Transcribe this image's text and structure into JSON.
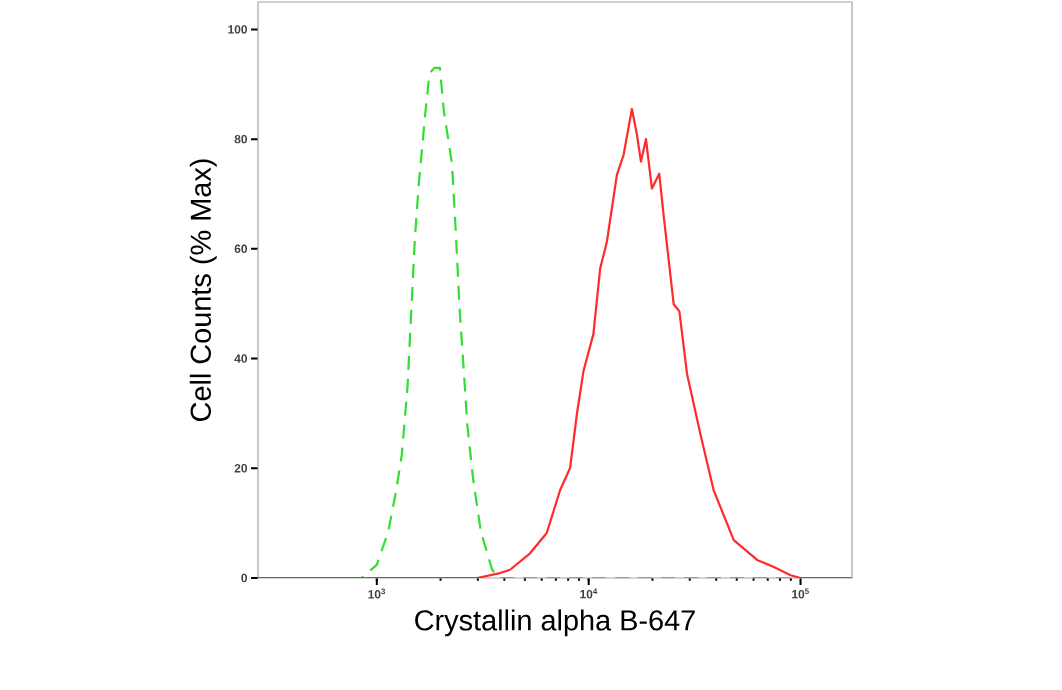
{
  "chart_data": {
    "type": "line",
    "xlabel": "Crystallin alpha B-647",
    "ylabel": "Cell Counts (% Max)",
    "log": "x",
    "xlim": [
      275,
      175000
    ],
    "ylim": [
      0,
      105
    ],
    "xticks": [
      {
        "value": 1000,
        "label": "10$^{3}$"
      },
      {
        "value": 10000,
        "label": "10$^{4}$"
      },
      {
        "value": 100000,
        "label": "10$^{5}$"
      }
    ],
    "yticks": [
      0,
      20,
      40,
      60,
      80,
      100
    ],
    "series": [
      {
        "color": "#33dd33",
        "line_style": "dashed",
        "x": [
          275,
          845,
          1000,
          1133,
          1230,
          1313,
          1397,
          1456,
          1513,
          1580,
          1687,
          1773,
          1872,
          1985,
          2074,
          2263,
          2360,
          2460,
          2566,
          2673,
          2843,
          3097,
          3497,
          3734,
          175000
        ],
        "values": [
          0,
          0,
          2.4,
          8.5,
          15.6,
          22.5,
          35,
          49,
          62,
          72,
          84,
          92,
          93,
          93,
          85,
          75.6,
          63,
          49,
          38.6,
          28,
          18.3,
          8.5,
          1.6,
          0,
          0
        ]
      },
      {
        "color": "#ff2a2a",
        "line_style": "solid",
        "x": [
          275,
          2972,
          3817,
          4256,
          5288,
          6340,
          7330,
          8180,
          8800,
          9450,
          10530,
          11330,
          12190,
          13590,
          14610,
          16000,
          16900,
          17650,
          18640,
          19890,
          21540,
          22570,
          25200,
          26800,
          29130,
          33650,
          38900,
          48400,
          62400,
          74800,
          89800,
          100000,
          175000
        ],
        "values": [
          0,
          0,
          0.9,
          1.5,
          4.5,
          8.2,
          16,
          20.1,
          29.9,
          37.7,
          44.5,
          56.4,
          61.3,
          73.5,
          77.1,
          85.5,
          80.8,
          75.9,
          80,
          71,
          73.7,
          66.2,
          49.9,
          48.6,
          37.2,
          26.3,
          16,
          6.9,
          3.3,
          2.0,
          0.5,
          0,
          0
        ]
      }
    ]
  }
}
